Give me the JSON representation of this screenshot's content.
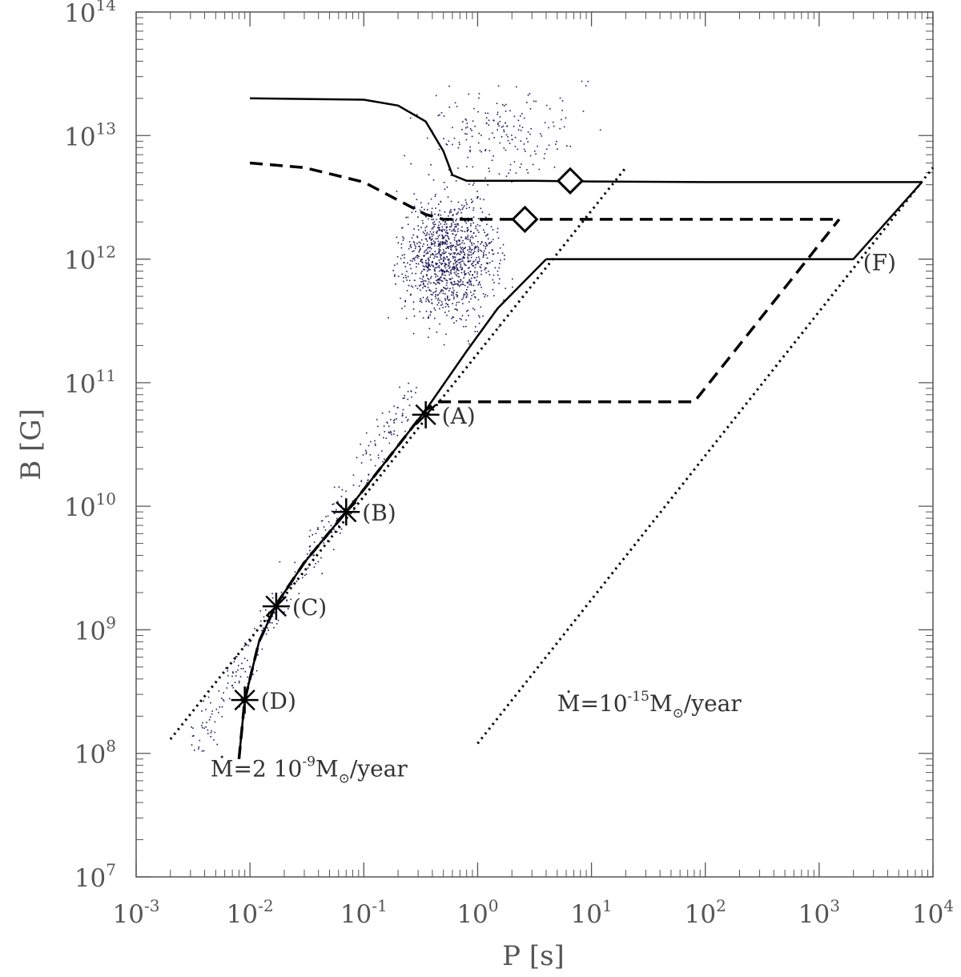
{
  "chart_data": {
    "type": "scatter",
    "title": "",
    "xlabel": "P [s]",
    "ylabel": "B [G]",
    "xscale": "log",
    "yscale": "log",
    "xlim": [
      0.001,
      10000
    ],
    "ylim": [
      10000000,
      100000000000000
    ],
    "grid": false,
    "x_ticks": [
      {
        "base": "10",
        "exp": "-3"
      },
      {
        "base": "10",
        "exp": "-2"
      },
      {
        "base": "10",
        "exp": "-1"
      },
      {
        "base": "10",
        "exp": "0"
      },
      {
        "base": "10",
        "exp": "1"
      },
      {
        "base": "10",
        "exp": "2"
      },
      {
        "base": "10",
        "exp": "3"
      },
      {
        "base": "10",
        "exp": "4"
      }
    ],
    "y_ticks": [
      {
        "base": "10",
        "exp": "7"
      },
      {
        "base": "10",
        "exp": "8"
      },
      {
        "base": "10",
        "exp": "9"
      },
      {
        "base": "10",
        "exp": "10"
      },
      {
        "base": "10",
        "exp": "11"
      },
      {
        "base": "10",
        "exp": "12"
      },
      {
        "base": "10",
        "exp": "13"
      },
      {
        "base": "10",
        "exp": "14"
      }
    ],
    "series": [
      {
        "style": "solid",
        "points": [
          [
            0.01,
            20000000000000.0
          ],
          [
            0.1,
            19500000000000.0
          ],
          [
            0.2,
            17500000000000.0
          ],
          [
            0.35,
            13000000000000.0
          ],
          [
            0.5,
            7500000000000.0
          ],
          [
            0.6,
            4800000000000.0
          ],
          [
            0.8,
            4300000000000.0
          ],
          [
            3,
            4300000000000.0
          ],
          [
            10,
            4250000000000.0
          ],
          [
            100,
            4200000000000.0
          ],
          [
            1000,
            4200000000000.0
          ],
          [
            8000,
            4200000000000.0
          ]
        ]
      },
      {
        "style": "solid",
        "points": [
          [
            4,
            1000000000000.0
          ],
          [
            2000,
            1000000000000.0
          ],
          [
            8000,
            4200000000000.0
          ]
        ]
      },
      {
        "style": "solid",
        "points": [
          [
            0.008,
            90000000.0
          ],
          [
            0.009,
            270000000.0
          ],
          [
            0.012,
            800000000.0
          ],
          [
            0.017,
            1600000000.0
          ],
          [
            0.03,
            3500000000.0
          ],
          [
            0.07,
            9000000000.0
          ],
          [
            0.15,
            22000000000.0
          ],
          [
            0.35,
            60000000000.0
          ],
          [
            0.8,
            180000000000.0
          ],
          [
            1.5,
            400000000000.0
          ],
          [
            4,
            1000000000000.0
          ]
        ]
      },
      {
        "style": "dashed",
        "points": [
          [
            0.01,
            6000000000000.0
          ],
          [
            0.03,
            5500000000000.0
          ],
          [
            0.1,
            4200000000000.0
          ],
          [
            0.2,
            3000000000000.0
          ],
          [
            0.35,
            2300000000000.0
          ],
          [
            0.5,
            2100000000000.0
          ],
          [
            3,
            2100000000000.0
          ],
          [
            1500,
            2100000000000.0
          ]
        ]
      },
      {
        "style": "dashed",
        "points": [
          [
            0.45,
            70000000000.0
          ],
          [
            80,
            70000000000.0
          ],
          [
            1500,
            2100000000000.0
          ]
        ]
      },
      {
        "style": "dashed",
        "points": [
          [
            0.008,
            90000000.0
          ],
          [
            0.009,
            270000000.0
          ],
          [
            0.012,
            800000000.0
          ],
          [
            0.017,
            1600000000.0
          ],
          [
            0.03,
            3500000000.0
          ],
          [
            0.07,
            9000000000.0
          ],
          [
            0.15,
            22000000000.0
          ],
          [
            0.35,
            60000000000.0
          ],
          [
            0.45,
            70000000000.0
          ]
        ]
      },
      {
        "style": "dotted",
        "label": "Ṁ=2 10⁻⁹M⊙/year",
        "points": [
          [
            0.002,
            130000000.0
          ],
          [
            20,
            5500000000000.0
          ]
        ]
      },
      {
        "style": "dotted",
        "label": "Ṁ=10⁻¹⁵M⊙/year",
        "points": [
          [
            1,
            120000000.0
          ],
          [
            10000,
            5500000000000.0
          ]
        ]
      }
    ],
    "markers": [
      {
        "shape": "asterisk",
        "x": 0.35,
        "y": 55000000000.0,
        "label": "(A)"
      },
      {
        "shape": "asterisk",
        "x": 0.07,
        "y": 9000000000.0,
        "label": "(B)"
      },
      {
        "shape": "asterisk",
        "x": 0.017,
        "y": 1550000000.0,
        "label": "(C)"
      },
      {
        "shape": "asterisk",
        "x": 0.009,
        "y": 270000000.0,
        "label": "(D)"
      },
      {
        "shape": "diamond",
        "x": 6.5,
        "y": 4300000000000.0
      },
      {
        "shape": "diamond",
        "x": 2.6,
        "y": 2100000000000.0
      }
    ],
    "point_labels": [
      {
        "x": 2000,
        "y": 1000000000000.0,
        "text": "(F)"
      }
    ],
    "annotations": [
      {
        "x": 5,
        "y": 220000000.0,
        "main": "Ṁ=10",
        "sup": "-15",
        "rest": "M",
        "sub": "⊙",
        "tail": "/year"
      },
      {
        "x": 0.0045,
        "y": 65000000.0,
        "main": "Ṁ=2 10",
        "sup": "-9",
        "rest": "M",
        "sub": "⊙",
        "tail": "/year"
      }
    ],
    "scatter_density": [
      {
        "x_range": [
          0.15,
          5
        ],
        "y_range": [
          100000000000.0,
          6000000000000.0
        ],
        "count": 1100,
        "peak_x": 0.55,
        "peak_y": 1000000000000.0
      },
      {
        "x_range": [
          0.1,
          30
        ],
        "y_range": [
          3000000000000.0,
          80000000000000.0
        ],
        "count": 200,
        "peak_x": 1.5,
        "peak_y": 10000000000000.0
      },
      {
        "x_range": [
          0.003,
          0.3
        ],
        "y_range": [
          100000000.0,
          100000000000.0
        ],
        "count": 300,
        "peak_x": 0.02,
        "peak_y": 1000000000.0
      }
    ]
  }
}
